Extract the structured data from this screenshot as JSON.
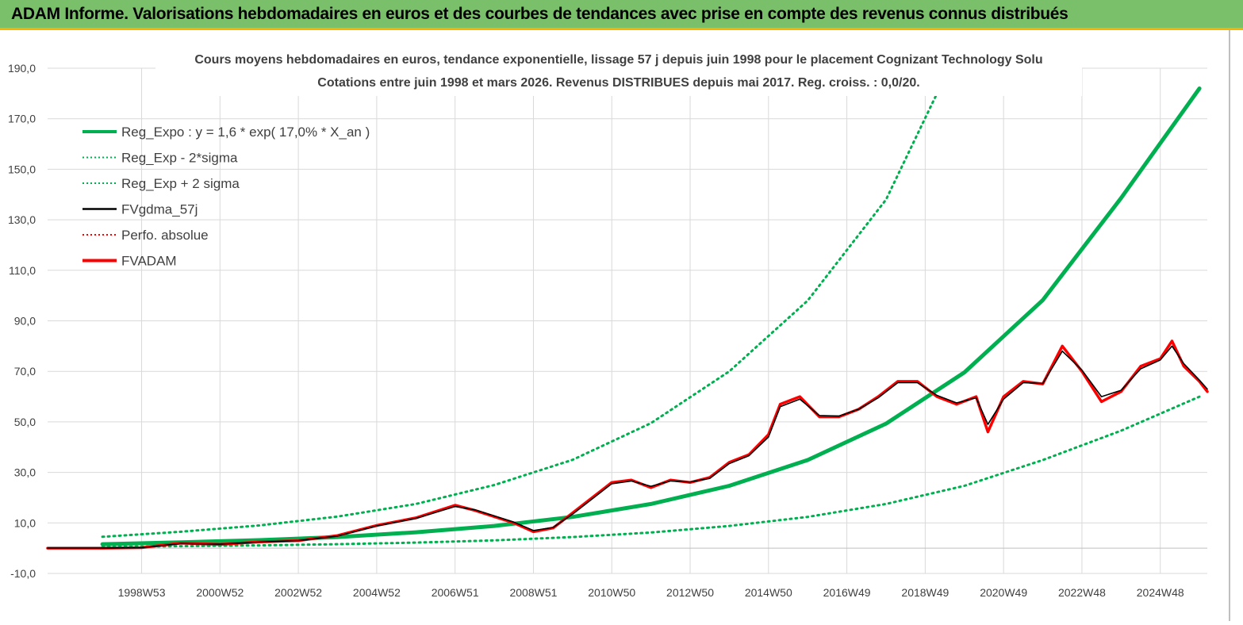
{
  "header": {
    "title": "ADAM Informe. Valorisations hebdomadaires en euros et des courbes de tendances avec prise en compte des revenus connus distribués"
  },
  "chart_data": {
    "type": "line",
    "title_line1": "Cours moyens hebdomadaires en euros, tendance exponentielle, lissage 57 j depuis juin 1998 pour le placement Cognizant Technology Solu",
    "title_line2": "Cotations entre juin 1998 et mars 2026. Revenus DISTRIBUES depuis mai 2017. Reg. croiss. : 0,0/20.",
    "ylim": [
      -10,
      190
    ],
    "y_ticks": [
      "-10,0",
      "10,0",
      "30,0",
      "50,0",
      "70,0",
      "90,0",
      "110,0",
      "130,0",
      "150,0",
      "170,0",
      "190,0"
    ],
    "x_ticks": [
      "1998W53",
      "2000W52",
      "2002W52",
      "2004W52",
      "2006W51",
      "2008W51",
      "2010W50",
      "2012W50",
      "2014W50",
      "2016W49",
      "2018W49",
      "2020W49",
      "2022W48",
      "2024W48"
    ],
    "x_tick_years": [
      1999.0,
      2001.0,
      2003.0,
      2005.0,
      2007.0,
      2009.0,
      2011.0,
      2013.0,
      2015.0,
      2017.0,
      2019.0,
      2021.0,
      2023.0,
      2025.0
    ],
    "x_range": [
      1996.6,
      2026.2
    ],
    "legend": [
      {
        "label": "Reg_Expo : y = 1,6 * exp( 17,0% *  X_an )",
        "color": "#00b050",
        "style": "thick"
      },
      {
        "label": "Reg_Exp - 2*sigma",
        "color": "#00b050",
        "style": "dotted"
      },
      {
        "label": "Reg_Exp + 2 sigma",
        "color": "#00b050",
        "style": "dotted"
      },
      {
        "label": "FVgdma_57j",
        "color": "#000000",
        "style": "solid"
      },
      {
        "label": "Perfo. absolue",
        "color": "#ff0000",
        "style": "dotted"
      },
      {
        "label": "FVADAM",
        "color": "#ff0000",
        "style": "thick"
      }
    ],
    "series": [
      {
        "name": "Reg_Expo : y = 1,6 * exp( 17,0% *  X_an )",
        "points": [
          [
            1998.0,
            1.6
          ],
          [
            2000.0,
            2.3
          ],
          [
            2002.0,
            3.2
          ],
          [
            2004.0,
            4.4
          ],
          [
            2006.0,
            6.3
          ],
          [
            2008.0,
            8.8
          ],
          [
            2010.0,
            12.4
          ],
          [
            2012.0,
            17.5
          ],
          [
            2014.0,
            24.7
          ],
          [
            2016.0,
            34.9
          ],
          [
            2018.0,
            49.3
          ],
          [
            2020.0,
            69.6
          ],
          [
            2022.0,
            98.2
          ],
          [
            2024.0,
            138.6
          ],
          [
            2026.0,
            182.0
          ]
        ]
      },
      {
        "name": "Reg_Exp + 2 sigma",
        "points": [
          [
            1998.0,
            4.5
          ],
          [
            2000.0,
            6.5
          ],
          [
            2002.0,
            9.0
          ],
          [
            2004.0,
            12.5
          ],
          [
            2006.0,
            17.5
          ],
          [
            2008.0,
            25.0
          ],
          [
            2010.0,
            35.0
          ],
          [
            2012.0,
            49.5
          ],
          [
            2014.0,
            70.0
          ],
          [
            2016.0,
            98.0
          ],
          [
            2018.0,
            138.0
          ],
          [
            2019.3,
            180.0
          ],
          [
            2019.8,
            190.0
          ]
        ]
      },
      {
        "name": "Reg_Exp - 2*sigma",
        "points": [
          [
            1998.0,
            0.5
          ],
          [
            2000.0,
            0.8
          ],
          [
            2002.0,
            1.1
          ],
          [
            2004.0,
            1.6
          ],
          [
            2006.0,
            2.2
          ],
          [
            2008.0,
            3.1
          ],
          [
            2010.0,
            4.4
          ],
          [
            2012.0,
            6.2
          ],
          [
            2014.0,
            8.8
          ],
          [
            2016.0,
            12.4
          ],
          [
            2018.0,
            17.5
          ],
          [
            2020.0,
            24.7
          ],
          [
            2022.0,
            34.9
          ],
          [
            2024.0,
            46.5
          ],
          [
            2026.0,
            60.0
          ]
        ]
      },
      {
        "name": "FVADAM",
        "points": [
          [
            1996.6,
            0.0
          ],
          [
            1998.0,
            0.0
          ],
          [
            1999.0,
            0.2
          ],
          [
            2000.0,
            2.0
          ],
          [
            2001.0,
            1.5
          ],
          [
            2002.0,
            2.5
          ],
          [
            2003.0,
            3.0
          ],
          [
            2004.0,
            5.0
          ],
          [
            2005.0,
            9.0
          ],
          [
            2006.0,
            12.0
          ],
          [
            2007.0,
            17.0
          ],
          [
            2007.5,
            15.0
          ],
          [
            2008.5,
            10.0
          ],
          [
            2009.0,
            6.5
          ],
          [
            2009.5,
            8.0
          ],
          [
            2010.0,
            14.0
          ],
          [
            2011.0,
            26.0
          ],
          [
            2011.5,
            27.0
          ],
          [
            2012.0,
            24.0
          ],
          [
            2012.5,
            27.0
          ],
          [
            2013.0,
            26.0
          ],
          [
            2013.5,
            28.0
          ],
          [
            2014.0,
            34.0
          ],
          [
            2014.5,
            37.0
          ],
          [
            2015.0,
            45.0
          ],
          [
            2015.3,
            57.0
          ],
          [
            2015.8,
            60.0
          ],
          [
            2016.3,
            52.0
          ],
          [
            2016.8,
            52.0
          ],
          [
            2017.3,
            55.0
          ],
          [
            2017.8,
            60.0
          ],
          [
            2018.3,
            66.0
          ],
          [
            2018.8,
            66.0
          ],
          [
            2019.3,
            60.0
          ],
          [
            2019.8,
            57.0
          ],
          [
            2020.3,
            60.0
          ],
          [
            2020.6,
            46.0
          ],
          [
            2021.0,
            60.0
          ],
          [
            2021.5,
            66.0
          ],
          [
            2022.0,
            65.0
          ],
          [
            2022.5,
            80.0
          ],
          [
            2023.0,
            70.0
          ],
          [
            2023.5,
            58.0
          ],
          [
            2024.0,
            62.0
          ],
          [
            2024.5,
            72.0
          ],
          [
            2025.0,
            75.0
          ],
          [
            2025.3,
            82.0
          ],
          [
            2025.6,
            72.0
          ],
          [
            2026.0,
            66.0
          ],
          [
            2026.2,
            62.0
          ]
        ]
      },
      {
        "name": "FVgdma_57j",
        "points": [
          [
            1996.6,
            0.0
          ],
          [
            1998.0,
            0.0
          ],
          [
            1999.0,
            0.2
          ],
          [
            2000.0,
            1.8
          ],
          [
            2001.0,
            1.6
          ],
          [
            2002.0,
            2.4
          ],
          [
            2003.0,
            3.0
          ],
          [
            2004.0,
            4.8
          ],
          [
            2005.0,
            8.8
          ],
          [
            2006.0,
            11.8
          ],
          [
            2007.0,
            16.5
          ],
          [
            2007.5,
            15.2
          ],
          [
            2008.5,
            10.3
          ],
          [
            2009.0,
            7.0
          ],
          [
            2009.5,
            8.2
          ],
          [
            2010.0,
            13.5
          ],
          [
            2011.0,
            25.5
          ],
          [
            2011.5,
            26.6
          ],
          [
            2012.0,
            24.5
          ],
          [
            2012.5,
            26.6
          ],
          [
            2013.0,
            26.2
          ],
          [
            2013.5,
            27.6
          ],
          [
            2014.0,
            33.5
          ],
          [
            2014.5,
            36.6
          ],
          [
            2015.0,
            44.0
          ],
          [
            2015.3,
            56.0
          ],
          [
            2015.8,
            59.0
          ],
          [
            2016.3,
            52.5
          ],
          [
            2016.8,
            52.3
          ],
          [
            2017.3,
            55.0
          ],
          [
            2017.8,
            59.5
          ],
          [
            2018.3,
            65.5
          ],
          [
            2018.8,
            65.5
          ],
          [
            2019.3,
            60.5
          ],
          [
            2019.8,
            57.5
          ],
          [
            2020.3,
            59.5
          ],
          [
            2020.6,
            49.0
          ],
          [
            2021.0,
            59.0
          ],
          [
            2021.5,
            65.5
          ],
          [
            2022.0,
            65.2
          ],
          [
            2022.5,
            78.0
          ],
          [
            2023.0,
            70.5
          ],
          [
            2023.5,
            60.0
          ],
          [
            2024.0,
            62.5
          ],
          [
            2024.5,
            71.0
          ],
          [
            2025.0,
            74.5
          ],
          [
            2025.3,
            80.0
          ],
          [
            2025.6,
            73.0
          ],
          [
            2026.0,
            66.5
          ],
          [
            2026.2,
            63.0
          ]
        ]
      }
    ]
  }
}
